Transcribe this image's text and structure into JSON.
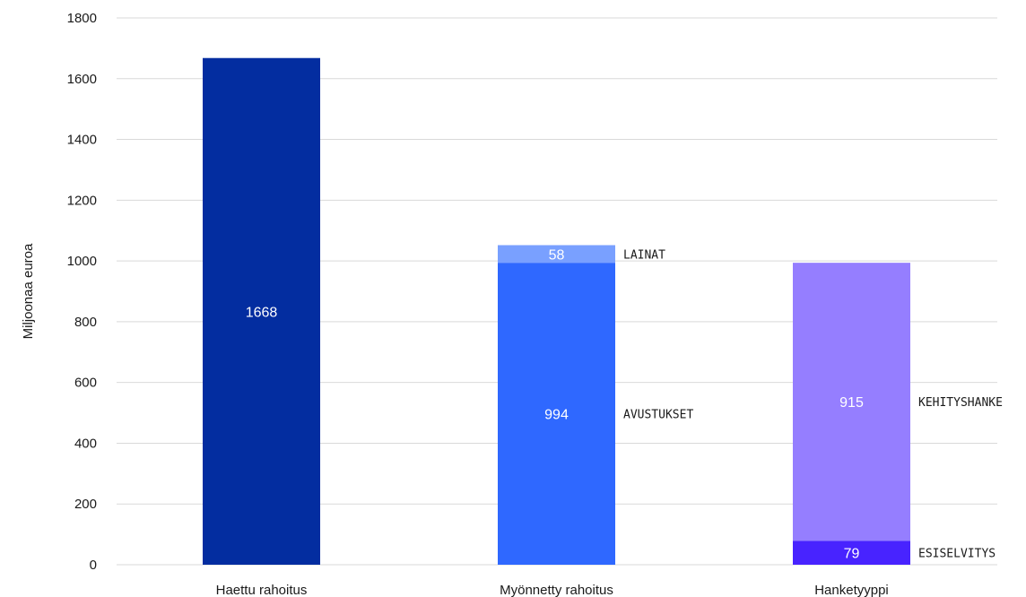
{
  "chart_data": {
    "type": "bar",
    "stacked": true,
    "ylabel": "Miljoonaa euroa",
    "ylim": [
      0,
      1800
    ],
    "yticks": [
      0,
      200,
      400,
      600,
      800,
      1000,
      1200,
      1400,
      1600,
      1800
    ],
    "grid": true,
    "categories": [
      "Haettu rahoitus",
      "Myönnetty rahoitus",
      "Hanketyyppi"
    ],
    "bars": [
      {
        "category": "Haettu rahoitus",
        "segments": [
          {
            "value": 1668,
            "label": "1668",
            "color": "#032da0"
          }
        ]
      },
      {
        "category": "Myönnetty rahoitus",
        "segments": [
          {
            "name": "AVUSTUKSET",
            "value": 994,
            "label": "994",
            "color": "#2f68ff"
          },
          {
            "name": "LAINAT",
            "value": 58,
            "label": "58",
            "color": "#79a0ff"
          }
        ]
      },
      {
        "category": "Hanketyyppi",
        "segments": [
          {
            "name": "ESISELVITYS",
            "value": 79,
            "label": "79",
            "color": "#4823ff"
          },
          {
            "name": "KEHITYSHANKE",
            "value": 915,
            "label": "915",
            "color": "#957eff"
          }
        ]
      }
    ]
  }
}
